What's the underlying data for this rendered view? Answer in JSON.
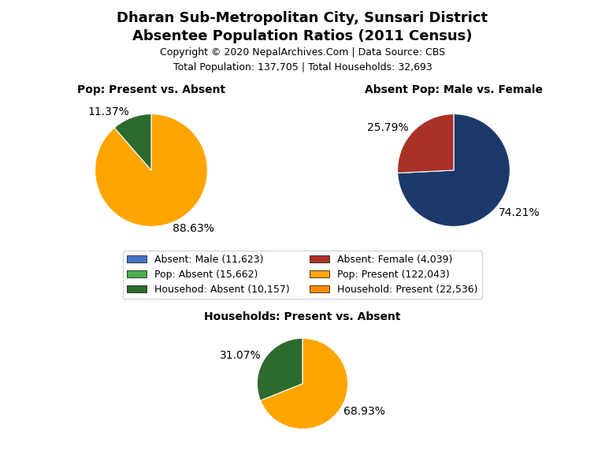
{
  "title": "Dharan Sub-Metropolitan City, Sunsari District",
  "subtitle": "Absentee Population Ratios (2011 Census)",
  "annotations": [
    "Copyright © 2020 NepalArchives.Com | Data Source: CBS",
    "Total Population: 137,705 | Total Households: 32,693"
  ],
  "legend_entries": [
    {
      "name": "Absent: Male (11,623)",
      "color": "#4472C4"
    },
    {
      "name": "Pop: Absent (15,662)",
      "color": "#4CAF50"
    },
    {
      "name": "Househod: Absent (10,157)",
      "color": "#2D6A2D"
    },
    {
      "name": "Absent: Female (4,039)",
      "color": "#A83228"
    },
    {
      "name": "Pop: Present (122,043)",
      "color": "#FFA500"
    },
    {
      "name": "Household: Present (22,536)",
      "color": "#FF8C00"
    }
  ],
  "chart_data": [
    {
      "type": "pie",
      "title": "Pop: Present vs. Absent",
      "values": [
        88.63,
        11.37
      ],
      "value_labels": [
        "88.63%",
        "11.37%"
      ],
      "colors": [
        "#FFA500",
        "#2D6A2D"
      ],
      "data_labels": true
    },
    {
      "type": "pie",
      "title": "Absent Pop: Male vs. Female",
      "values": [
        74.21,
        25.79
      ],
      "value_labels": [
        "74.21%",
        "25.79%"
      ],
      "colors": [
        "#1B3A6B",
        "#A83228"
      ],
      "data_labels": true
    },
    {
      "type": "pie",
      "title": "Households: Present vs. Absent",
      "values": [
        68.93,
        31.07
      ],
      "value_labels": [
        "68.93%",
        "31.07%"
      ],
      "colors": [
        "#FFA500",
        "#2D6A2D"
      ],
      "data_labels": true
    }
  ]
}
